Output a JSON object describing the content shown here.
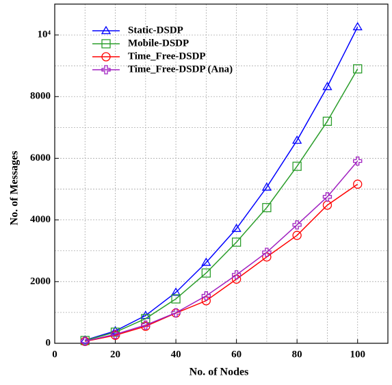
{
  "chart_data": {
    "type": "line",
    "xlabel": "No. of Nodes",
    "ylabel": "No. of Messages",
    "x": [
      10,
      20,
      30,
      40,
      50,
      60,
      70,
      80,
      90,
      100
    ],
    "series": [
      {
        "name": "Static-DSDP",
        "color": "#0000ff",
        "marker": "triangle",
        "values": [
          100,
          400,
          900,
          1650,
          2620,
          3720,
          5060,
          6580,
          8320,
          10260
        ]
      },
      {
        "name": "Mobile-DSDP",
        "color": "#2a9d2a",
        "marker": "square",
        "values": [
          90,
          360,
          800,
          1440,
          2280,
          3280,
          4400,
          5740,
          7200,
          8900
        ]
      },
      {
        "name": "Time_Free-DSDP",
        "color": "#ff0000",
        "marker": "circle",
        "values": [
          60,
          260,
          550,
          980,
          1380,
          2080,
          2800,
          3500,
          4480,
          5160
        ]
      },
      {
        "name": "Time_Free-DSDP (Ana)",
        "color": "#a020c0",
        "marker": "plus",
        "values": [
          70,
          290,
          590,
          990,
          1540,
          2220,
          2950,
          3840,
          4750,
          5910
        ]
      }
    ],
    "xlim": [
      0,
      110
    ],
    "ylim": [
      0,
      11000
    ],
    "xticks": [
      0,
      20,
      40,
      60,
      80,
      100
    ],
    "yticks": [
      0,
      2000,
      4000,
      6000,
      8000,
      {
        "value": 10000,
        "label": "10⁴"
      }
    ],
    "xminorticks": [
      10,
      30,
      50,
      70,
      90,
      110
    ],
    "yminorticks": [
      1000,
      3000,
      5000,
      7000,
      9000,
      11000
    ],
    "grid": true,
    "legend": "upper left"
  }
}
